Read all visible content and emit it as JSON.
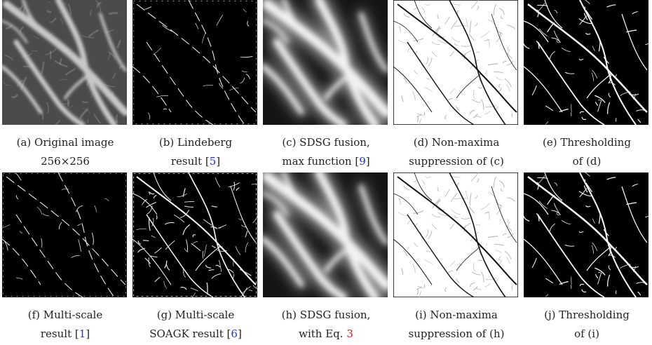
{
  "figures": [
    {
      "id": "a",
      "row": 0,
      "col": 0,
      "kind": "original",
      "line1": "(a) Original image",
      "line2": "256×256",
      "ref": "",
      "ref_style": ""
    },
    {
      "id": "b",
      "row": 0,
      "col": 1,
      "kind": "sparse",
      "line1": "(b) Lindeberg",
      "line2": "result [",
      "ref": "5",
      "ref_style": "blue",
      "suffix": "]"
    },
    {
      "id": "c",
      "row": 0,
      "col": 2,
      "kind": "fusion",
      "line1": "(c) SDSG fusion,",
      "line2": "max function [",
      "ref": "9",
      "ref_style": "blue",
      "suffix": "]"
    },
    {
      "id": "d",
      "row": 0,
      "col": 3,
      "kind": "nms",
      "line1": "(d) Non-maxima",
      "line2": "suppression of (c)",
      "ref": "",
      "ref_style": ""
    },
    {
      "id": "e",
      "row": 0,
      "col": 4,
      "kind": "thresh",
      "line1": "(e) Thresholding",
      "line2": "of (d)",
      "ref": "",
      "ref_style": ""
    },
    {
      "id": "f",
      "row": 1,
      "col": 0,
      "kind": "sparse",
      "line1": "(f) Multi-scale",
      "line2": "result [",
      "ref": "1",
      "ref_style": "blue",
      "suffix": "]"
    },
    {
      "id": "g",
      "row": 1,
      "col": 1,
      "kind": "dense",
      "line1": "(g) Multi-scale",
      "line2": "SOAGK result [",
      "ref": "6",
      "ref_style": "blue",
      "suffix": "]"
    },
    {
      "id": "h",
      "row": 1,
      "col": 2,
      "kind": "fusion",
      "line1": "(h) SDSG fusion,",
      "line2": "with Eq. ",
      "ref": "3",
      "ref_style": "red",
      "suffix": ""
    },
    {
      "id": "i",
      "row": 1,
      "col": 3,
      "kind": "nms",
      "line1": "(i) Non-maxima",
      "line2": "suppression of (h)",
      "ref": "",
      "ref_style": ""
    },
    {
      "id": "j",
      "row": 1,
      "col": 4,
      "kind": "thresh",
      "line1": "(j) Thresholding",
      "line2": "of (i)",
      "ref": "",
      "ref_style": ""
    }
  ]
}
